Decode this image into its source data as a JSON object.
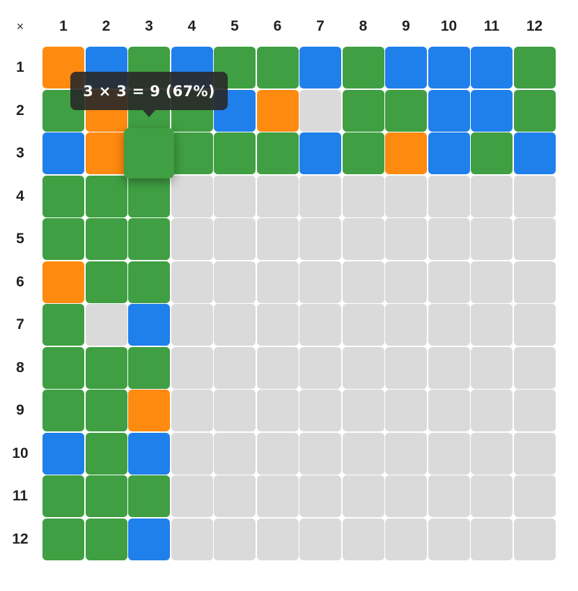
{
  "corner_label": "×",
  "column_headers": [
    "1",
    "2",
    "3",
    "4",
    "5",
    "6",
    "7",
    "8",
    "9",
    "10",
    "11",
    "12"
  ],
  "row_headers": [
    "1",
    "2",
    "3",
    "4",
    "5",
    "6",
    "7",
    "8",
    "9",
    "10",
    "11",
    "12"
  ],
  "colors": {
    "orange": "#FF8A10",
    "blue": "#1F7FEB",
    "green": "#3F9F42",
    "empty": "#DADADA"
  },
  "cells": [
    [
      "orange",
      "blue",
      "green",
      "blue",
      "green",
      "green",
      "blue",
      "green",
      "blue",
      "blue",
      "blue",
      "green"
    ],
    [
      "green",
      "orange",
      "green",
      "green",
      "blue",
      "orange",
      "empty",
      "green",
      "green",
      "blue",
      "blue",
      "green"
    ],
    [
      "blue",
      "orange",
      "green",
      "green",
      "green",
      "green",
      "blue",
      "green",
      "orange",
      "blue",
      "green",
      "blue"
    ],
    [
      "green",
      "green",
      "green",
      "empty",
      "empty",
      "empty",
      "empty",
      "empty",
      "empty",
      "empty",
      "empty",
      "empty"
    ],
    [
      "green",
      "green",
      "green",
      "empty",
      "empty",
      "empty",
      "empty",
      "empty",
      "empty",
      "empty",
      "empty",
      "empty"
    ],
    [
      "orange",
      "green",
      "green",
      "empty",
      "empty",
      "empty",
      "empty",
      "empty",
      "empty",
      "empty",
      "empty",
      "empty"
    ],
    [
      "green",
      "empty",
      "blue",
      "empty",
      "empty",
      "empty",
      "empty",
      "empty",
      "empty",
      "empty",
      "empty",
      "empty"
    ],
    [
      "green",
      "green",
      "green",
      "empty",
      "empty",
      "empty",
      "empty",
      "empty",
      "empty",
      "empty",
      "empty",
      "empty"
    ],
    [
      "green",
      "green",
      "orange",
      "empty",
      "empty",
      "empty",
      "empty",
      "empty",
      "empty",
      "empty",
      "empty",
      "empty"
    ],
    [
      "blue",
      "green",
      "blue",
      "empty",
      "empty",
      "empty",
      "empty",
      "empty",
      "empty",
      "empty",
      "empty",
      "empty"
    ],
    [
      "green",
      "green",
      "green",
      "empty",
      "empty",
      "empty",
      "empty",
      "empty",
      "empty",
      "empty",
      "empty",
      "empty"
    ],
    [
      "green",
      "green",
      "blue",
      "empty",
      "empty",
      "empty",
      "empty",
      "empty",
      "empty",
      "empty",
      "empty",
      "empty"
    ]
  ],
  "hovered_cell": {
    "row": 3,
    "col": 3
  },
  "tooltip": {
    "text": "3 × 3 = 9 (67%)"
  }
}
